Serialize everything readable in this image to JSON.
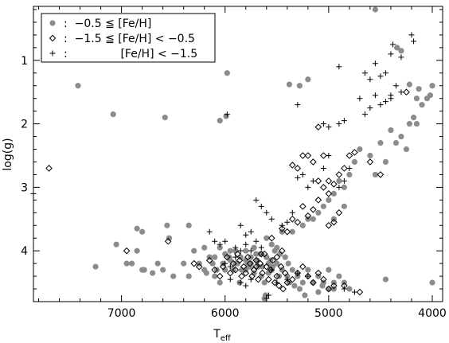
{
  "chart_data": {
    "type": "scatter",
    "title": "",
    "xlabel": "T",
    "xlabel_sub": "eff",
    "ylabel": "log(g)",
    "x_reversed": true,
    "y_reversed": true,
    "xlim": [
      7850,
      3900
    ],
    "ylim": [
      0.15,
      4.8
    ],
    "xticks": [
      7000,
      6000,
      5000,
      4000
    ],
    "yticks": [
      1,
      2,
      3,
      4
    ],
    "xtick_labels": [
      "7000",
      "6000",
      "5000",
      "4000"
    ],
    "ytick_labels": [
      "1",
      "2",
      "3",
      "4"
    ],
    "grid": false,
    "legend_position": "top-left",
    "legend": [
      {
        "marker": "filled-circle",
        "text": ":  −0.5 ≦ [Fe/H]"
      },
      {
        "marker": "open-diamond",
        "text": ":  −1.5 ≦ [Fe/H] < −0.5"
      },
      {
        "marker": "plus",
        "text": ":               [Fe/H] < −1.5"
      }
    ],
    "series": [
      {
        "marker": "filled-circle",
        "color": "#8c8c8c",
        "points": [
          [
            7420,
            1.4
          ],
          [
            7080,
            1.85
          ],
          [
            6580,
            1.9
          ],
          [
            5980,
            1.2
          ],
          [
            6050,
            1.95
          ],
          [
            5990,
            1.88
          ],
          [
            5380,
            1.38
          ],
          [
            5280,
            1.4
          ],
          [
            5200,
            1.3
          ],
          [
            4550,
            0.2
          ],
          [
            4340,
            0.8
          ],
          [
            4300,
            0.85
          ],
          [
            4050,
            1.6
          ],
          [
            4020,
            1.55
          ],
          [
            4220,
            1.38
          ],
          [
            4000,
            1.4
          ],
          [
            4130,
            1.45
          ],
          [
            4150,
            1.6
          ],
          [
            4180,
            1.9
          ],
          [
            4220,
            2.0
          ],
          [
            4300,
            2.2
          ],
          [
            4250,
            2.4
          ],
          [
            4400,
            2.1
          ],
          [
            4500,
            2.3
          ],
          [
            4600,
            2.5
          ],
          [
            4700,
            2.4
          ],
          [
            4750,
            2.6
          ],
          [
            4800,
            2.8
          ],
          [
            4850,
            3.0
          ],
          [
            4900,
            2.9
          ],
          [
            4950,
            3.1
          ],
          [
            5000,
            3.2
          ],
          [
            5050,
            3.3
          ],
          [
            5100,
            3.4
          ],
          [
            5150,
            3.5
          ],
          [
            4850,
            3.3
          ],
          [
            4950,
            3.5
          ],
          [
            5200,
            3.5
          ],
          [
            5250,
            3.6
          ],
          [
            5350,
            3.7
          ],
          [
            5450,
            3.7
          ],
          [
            5550,
            3.9
          ],
          [
            5600,
            3.8
          ],
          [
            4550,
            2.8
          ],
          [
            4450,
            2.6
          ],
          [
            4350,
            2.3
          ],
          [
            4150,
            2.0
          ],
          [
            4100,
            1.7
          ],
          [
            7050,
            3.9
          ],
          [
            6950,
            4.2
          ],
          [
            6850,
            3.65
          ],
          [
            6800,
            3.7
          ],
          [
            6900,
            4.2
          ],
          [
            6850,
            4.0
          ],
          [
            6780,
            4.3
          ],
          [
            6650,
            4.2
          ],
          [
            6600,
            4.3
          ],
          [
            6560,
            3.6
          ],
          [
            6540,
            3.8
          ],
          [
            6500,
            4.4
          ],
          [
            6400,
            4.2
          ],
          [
            6350,
            4.4
          ],
          [
            6200,
            4.3
          ],
          [
            6150,
            4.1
          ],
          [
            6100,
            4.4
          ],
          [
            6050,
            4.5
          ],
          [
            6000,
            4.3
          ],
          [
            5950,
            4.0
          ],
          [
            5900,
            4.2
          ],
          [
            5860,
            4.5
          ],
          [
            5800,
            4.3
          ],
          [
            5750,
            4.2
          ],
          [
            5700,
            4.05
          ],
          [
            5650,
            4.4
          ],
          [
            5620,
            4.5
          ],
          [
            5580,
            4.2
          ],
          [
            5550,
            4.3
          ],
          [
            5520,
            4.0
          ],
          [
            5500,
            4.2
          ],
          [
            5480,
            4.4
          ],
          [
            5450,
            4.3
          ],
          [
            5420,
            4.1
          ],
          [
            5400,
            4.4
          ],
          [
            5380,
            4.5
          ],
          [
            5350,
            4.3
          ],
          [
            5300,
            4.4
          ],
          [
            5250,
            4.5
          ],
          [
            5200,
            4.3
          ],
          [
            5150,
            4.5
          ],
          [
            5100,
            4.4
          ],
          [
            5050,
            4.5
          ],
          [
            5000,
            4.3
          ],
          [
            4950,
            4.5
          ],
          [
            4900,
            4.4
          ],
          [
            4850,
            4.5
          ],
          [
            4800,
            4.6
          ],
          [
            4450,
            4.45
          ],
          [
            4000,
            4.5
          ],
          [
            7250,
            4.25
          ],
          [
            6800,
            4.3
          ],
          [
            6700,
            4.35
          ],
          [
            6350,
            3.6
          ],
          [
            6200,
            3.95
          ],
          [
            6100,
            4.1
          ],
          [
            6050,
            3.95
          ],
          [
            6000,
            4.05
          ],
          [
            5950,
            4.15
          ],
          [
            5900,
            4.0
          ],
          [
            5850,
            4.1
          ],
          [
            5800,
            4.0
          ],
          [
            5780,
            4.2
          ],
          [
            5750,
            4.1
          ],
          [
            5720,
            3.95
          ],
          [
            5690,
            4.15
          ],
          [
            5660,
            4.05
          ],
          [
            5640,
            4.25
          ],
          [
            5600,
            4.1
          ],
          [
            5580,
            4.35
          ],
          [
            5560,
            4.15
          ],
          [
            5540,
            4.25
          ],
          [
            5720,
            4.35
          ],
          [
            5680,
            4.25
          ],
          [
            5760,
            4.25
          ],
          [
            5800,
            4.15
          ],
          [
            5840,
            4.3
          ],
          [
            5880,
            4.2
          ],
          [
            5920,
            4.3
          ],
          [
            5960,
            4.1
          ],
          [
            6020,
            4.2
          ],
          [
            6080,
            4.3
          ],
          [
            6120,
            4.2
          ],
          [
            6180,
            4.35
          ],
          [
            6250,
            4.2
          ],
          [
            6300,
            4.0
          ],
          [
            5610,
            4.7
          ],
          [
            5620,
            4.75
          ],
          [
            5500,
            3.95
          ],
          [
            5470,
            4.05
          ],
          [
            5390,
            4.2
          ],
          [
            5330,
            4.55
          ],
          [
            5280,
            4.6
          ],
          [
            5230,
            4.7
          ],
          [
            5100,
            4.65
          ],
          [
            5060,
            4.55
          ],
          [
            5000,
            4.6
          ],
          [
            4950,
            4.6
          ]
        ]
      },
      {
        "marker": "open-diamond",
        "color": "#000000",
        "points": [
          [
            7700,
            2.7
          ],
          [
            6950,
            4.0
          ],
          [
            6550,
            3.85
          ],
          [
            6300,
            4.2
          ],
          [
            6250,
            4.25
          ],
          [
            6150,
            4.15
          ],
          [
            6100,
            4.3
          ],
          [
            6050,
            4.4
          ],
          [
            6020,
            4.25
          ],
          [
            5980,
            4.1
          ],
          [
            5950,
            4.35
          ],
          [
            5920,
            4.2
          ],
          [
            5900,
            4.3
          ],
          [
            5880,
            4.05
          ],
          [
            5860,
            4.15
          ],
          [
            5840,
            4.4
          ],
          [
            5820,
            4.25
          ],
          [
            5800,
            4.35
          ],
          [
            5780,
            4.1
          ],
          [
            5760,
            4.2
          ],
          [
            5740,
            4.4
          ],
          [
            5720,
            4.3
          ],
          [
            5700,
            4.15
          ],
          [
            5680,
            4.45
          ],
          [
            5660,
            4.2
          ],
          [
            5640,
            4.35
          ],
          [
            5620,
            4.05
          ],
          [
            5600,
            4.25
          ],
          [
            5580,
            4.45
          ],
          [
            5560,
            4.3
          ],
          [
            5540,
            4.15
          ],
          [
            5520,
            4.5
          ],
          [
            5500,
            4.4
          ],
          [
            5480,
            4.55
          ],
          [
            5460,
            4.25
          ],
          [
            5440,
            4.6
          ],
          [
            5420,
            4.35
          ],
          [
            5400,
            4.5
          ],
          [
            5350,
            4.45
          ],
          [
            5300,
            4.35
          ],
          [
            5250,
            4.25
          ],
          [
            5200,
            4.4
          ],
          [
            5150,
            4.5
          ],
          [
            5100,
            4.35
          ],
          [
            5050,
            4.45
          ],
          [
            5000,
            4.6
          ],
          [
            4950,
            4.55
          ],
          [
            4850,
            4.55
          ],
          [
            4700,
            4.65
          ],
          [
            5550,
            3.8
          ],
          [
            5450,
            3.65
          ],
          [
            5400,
            3.7
          ],
          [
            5350,
            3.5
          ],
          [
            5300,
            3.55
          ],
          [
            5250,
            3.3
          ],
          [
            5200,
            3.45
          ],
          [
            5150,
            3.35
          ],
          [
            5100,
            3.2
          ],
          [
            5050,
            3.0
          ],
          [
            5000,
            3.1
          ],
          [
            4950,
            2.95
          ],
          [
            4900,
            2.8
          ],
          [
            4850,
            2.7
          ],
          [
            4800,
            2.5
          ],
          [
            4750,
            2.45
          ],
          [
            5350,
            2.65
          ],
          [
            5300,
            2.7
          ],
          [
            5250,
            2.5
          ],
          [
            5200,
            2.5
          ],
          [
            5150,
            2.6
          ],
          [
            5100,
            2.9
          ],
          [
            5050,
            2.5
          ],
          [
            5000,
            2.9
          ],
          [
            5100,
            2.05
          ],
          [
            4250,
            1.5
          ],
          [
            4600,
            2.6
          ],
          [
            4500,
            2.8
          ],
          [
            5000,
            3.6
          ],
          [
            4950,
            3.55
          ],
          [
            4900,
            3.4
          ],
          [
            5500,
            4.1
          ],
          [
            5450,
            4.0
          ],
          [
            5650,
            4.05
          ],
          [
            5700,
            4.25
          ]
        ]
      },
      {
        "marker": "plus",
        "color": "#000000",
        "points": [
          [
            7850,
            3.1
          ],
          [
            5980,
            1.85
          ],
          [
            5300,
            1.7
          ],
          [
            5050,
            2.0
          ],
          [
            5000,
            2.05
          ],
          [
            4900,
            2.0
          ],
          [
            4850,
            1.95
          ],
          [
            4900,
            1.1
          ],
          [
            4650,
            1.2
          ],
          [
            4600,
            1.3
          ],
          [
            4500,
            1.25
          ],
          [
            4500,
            1.7
          ],
          [
            4400,
            1.6
          ],
          [
            4380,
            0.75
          ],
          [
            4450,
            1.2
          ],
          [
            4550,
            1.05
          ],
          [
            4400,
            0.9
          ],
          [
            4300,
            0.95
          ],
          [
            4200,
            0.6
          ],
          [
            4180,
            0.7
          ],
          [
            4400,
            1.55
          ],
          [
            4600,
            1.75
          ],
          [
            4650,
            1.85
          ],
          [
            4300,
            1.5
          ],
          [
            4350,
            1.4
          ],
          [
            4700,
            1.6
          ],
          [
            4550,
            1.55
          ],
          [
            4450,
            1.65
          ],
          [
            5000,
            2.5
          ],
          [
            5050,
            2.7
          ],
          [
            4800,
            2.7
          ],
          [
            4850,
            2.9
          ],
          [
            4900,
            3.0
          ],
          [
            5150,
            2.9
          ],
          [
            5200,
            3.0
          ],
          [
            5250,
            2.8
          ],
          [
            5300,
            2.85
          ],
          [
            5350,
            3.4
          ],
          [
            5400,
            3.55
          ],
          [
            5450,
            3.6
          ],
          [
            5550,
            3.5
          ],
          [
            5600,
            3.4
          ],
          [
            5650,
            3.3
          ],
          [
            5700,
            3.2
          ],
          [
            5750,
            3.7
          ],
          [
            5800,
            3.75
          ],
          [
            5850,
            3.6
          ],
          [
            6000,
            3.85
          ],
          [
            6050,
            3.9
          ],
          [
            5900,
            3.95
          ],
          [
            5850,
            4.0
          ],
          [
            5800,
            3.9
          ],
          [
            5750,
            4.0
          ],
          [
            5700,
            3.85
          ],
          [
            5650,
            3.95
          ],
          [
            5950,
            4.45
          ],
          [
            5850,
            4.5
          ],
          [
            5750,
            4.45
          ],
          [
            5550,
            4.3
          ],
          [
            5500,
            4.5
          ],
          [
            5400,
            4.45
          ],
          [
            5300,
            4.35
          ],
          [
            5200,
            4.4
          ],
          [
            4850,
            4.6
          ],
          [
            4750,
            4.65
          ],
          [
            5600,
            4.75
          ],
          [
            5580,
            4.7
          ],
          [
            6150,
            3.7
          ],
          [
            6100,
            3.85
          ],
          [
            5950,
            4.25
          ],
          [
            5900,
            4.1
          ],
          [
            6000,
            4.2
          ],
          [
            5800,
            4.55
          ]
        ]
      }
    ]
  }
}
